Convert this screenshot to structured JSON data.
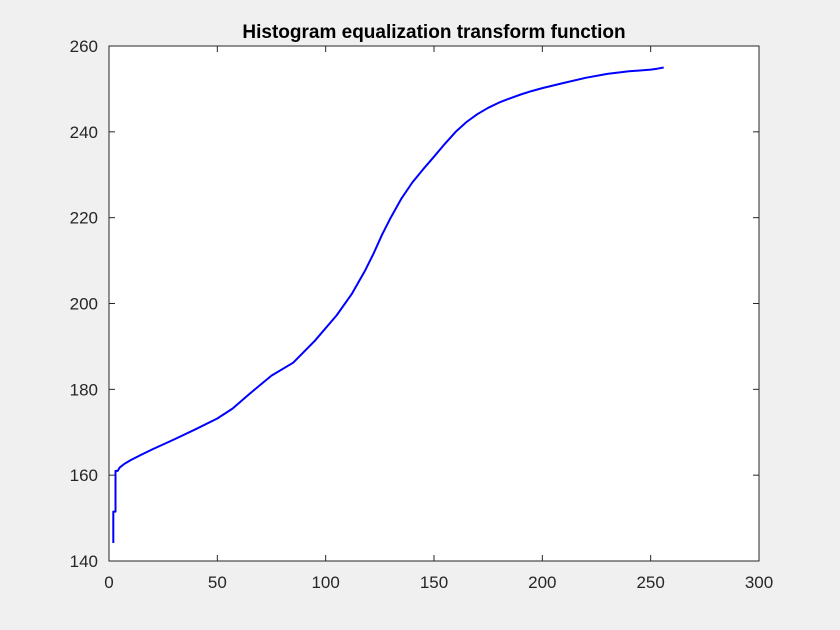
{
  "chart_data": {
    "type": "line",
    "title": "Histogram equalization transform function",
    "xlabel": "",
    "ylabel": "",
    "xlim": [
      0,
      300
    ],
    "ylim": [
      140,
      260
    ],
    "xticks": [
      0,
      50,
      100,
      150,
      200,
      250,
      300
    ],
    "yticks": [
      140,
      160,
      180,
      200,
      220,
      240,
      260
    ],
    "grid": false,
    "colors": {
      "line": "#0000ff",
      "axes": "#262626",
      "plot_bg": "#ffffff",
      "figure_bg": "#f0f0f0"
    },
    "series": [
      {
        "x": [
          2,
          2,
          3,
          3,
          4,
          4,
          5,
          7,
          10,
          15,
          20,
          30,
          40,
          50,
          57,
          65,
          75,
          85,
          95,
          105,
          112,
          118,
          122,
          126,
          130,
          135,
          140,
          145,
          150,
          155,
          160,
          165,
          170,
          175,
          180,
          185,
          190,
          195,
          200,
          210,
          220,
          230,
          240,
          250,
          253,
          256
        ],
        "y": [
          144.2,
          151.5,
          151.5,
          161,
          161,
          161,
          161.8,
          162.6,
          163.5,
          164.8,
          166,
          168.3,
          170.7,
          173.2,
          175.5,
          179,
          183.2,
          186.2,
          191.3,
          197.2,
          202.2,
          207.5,
          211.5,
          216,
          220,
          224.5,
          228.2,
          231.3,
          234.2,
          237.2,
          240,
          242.3,
          244.1,
          245.6,
          246.8,
          247.8,
          248.7,
          249.5,
          250.2,
          251.4,
          252.6,
          253.5,
          254.1,
          254.5,
          254.7,
          255
        ]
      }
    ]
  }
}
